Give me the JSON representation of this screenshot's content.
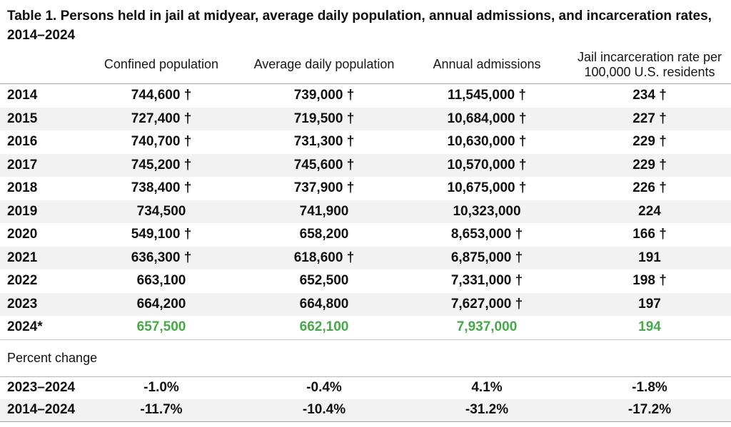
{
  "title_lines": [
    "Table 1. Persons held in jail at midyear, average daily population, annual admissions, and incarceration rates,",
    "2014–2024"
  ],
  "colors": {
    "highlight_green": "#44aa47",
    "stripe": "#f2f2f2",
    "rule_dark": "#9e9e9e"
  },
  "table": {
    "headers": [
      {
        "label": "Confined population"
      },
      {
        "label": "Average daily population"
      },
      {
        "label": "Annual admissions"
      },
      {
        "label": "Jail incarceration rate per",
        "label2": "100,000 U.S. residents"
      }
    ],
    "rows": [
      {
        "year": "2014",
        "confined": "744,600 †",
        "adp": "739,000 †",
        "admissions": "11,545,000 †",
        "rate": "234 †"
      },
      {
        "year": "2015",
        "confined": "727,400 †",
        "adp": "719,500 †",
        "admissions": "10,684,000 †",
        "rate": "227 †"
      },
      {
        "year": "2016",
        "confined": "740,700 †",
        "adp": "731,300 †",
        "admissions": "10,630,000 †",
        "rate": "229 †"
      },
      {
        "year": "2017",
        "confined": "745,200 †",
        "adp": "745,600 †",
        "admissions": "10,570,000 †",
        "rate": "229 †"
      },
      {
        "year": "2018",
        "confined": "738,400 †",
        "adp": "737,900 †",
        "admissions": "10,675,000 †",
        "rate": "226 †"
      },
      {
        "year": "2019",
        "confined": "734,500",
        "adp": "741,900",
        "admissions": "10,323,000",
        "rate": "224"
      },
      {
        "year": "2020",
        "confined": "549,100 †",
        "adp": "658,200",
        "admissions": "8,653,000 †",
        "rate": "166 †"
      },
      {
        "year": "2021",
        "confined": "636,300 †",
        "adp": "618,600 †",
        "admissions": "6,875,000 †",
        "rate": "191"
      },
      {
        "year": "2022",
        "confined": "663,100",
        "adp": "652,500",
        "admissions": "7,331,000 †",
        "rate": "198 †"
      },
      {
        "year": "2023",
        "confined": "664,200",
        "adp": "664,800",
        "admissions": "7,627,000 †",
        "rate": "197"
      },
      {
        "year": "2024*",
        "confined": "657,500",
        "adp": "662,100",
        "admissions": "7,937,000",
        "rate": "194",
        "highlight": true
      }
    ]
  },
  "percent_change": {
    "section_label": "Percent change",
    "rows": [
      {
        "label": "2023–2024",
        "confined": "-1.0%",
        "adp": "-0.4%",
        "admissions": "4.1%",
        "rate": "-1.8%"
      },
      {
        "label": "2014–2024",
        "confined": "-11.7%",
        "adp": "-10.4%",
        "admissions": "-31.2%",
        "rate": "-17.2%"
      }
    ]
  },
  "chart_data": {
    "type": "table",
    "title": "Table 1. Persons held in jail at midyear, average daily population, annual admissions, and incarceration rates, 2014–2024",
    "categories": [
      "2014",
      "2015",
      "2016",
      "2017",
      "2018",
      "2019",
      "2020",
      "2021",
      "2022",
      "2023",
      "2024*"
    ],
    "series": [
      {
        "name": "Confined population",
        "values": [
          744600,
          727400,
          740700,
          745200,
          738400,
          734500,
          549100,
          636300,
          663100,
          664200,
          657500
        ]
      },
      {
        "name": "Average daily population",
        "values": [
          739000,
          719500,
          731300,
          745600,
          737900,
          741900,
          658200,
          618600,
          652500,
          664800,
          662100
        ]
      },
      {
        "name": "Annual admissions",
        "values": [
          11545000,
          10684000,
          10630000,
          10570000,
          10675000,
          10323000,
          8653000,
          6875000,
          7331000,
          7627000,
          7937000
        ]
      },
      {
        "name": "Jail incarceration rate per 100,000 U.S. residents",
        "values": [
          234,
          227,
          229,
          229,
          226,
          224,
          166,
          191,
          198,
          197,
          194
        ]
      }
    ],
    "percent_change": {
      "2023–2024": [
        -1.0,
        -0.4,
        4.1,
        -1.8
      ],
      "2014–2024": [
        -11.7,
        -10.4,
        -31.2,
        -17.2
      ]
    },
    "dagger_marked_cells": "† shown after significant values; 2024* row rendered in green"
  }
}
